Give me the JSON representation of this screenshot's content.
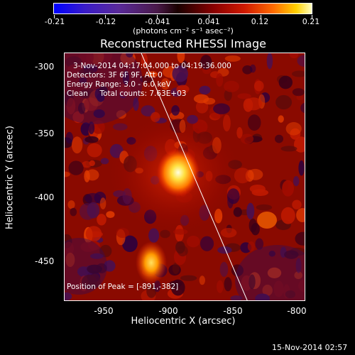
{
  "colorbar": {
    "ticks": [
      "-0.21",
      "-0.12",
      "-0.041",
      "0.041",
      "0.12",
      "0.21"
    ],
    "units": "(photons cm⁻² s⁻¹ asec⁻²)"
  },
  "title": "Reconstructed RHESSI Image",
  "annotations": {
    "time_range": "3-Nov-2014 04:17:04.000 to 04:19:36.000",
    "detectors": "Detectors: 3F 6F 9F, Att 0",
    "energy": "Energy Range: 3.0 - 6.0 keV",
    "clean": "Clean     Total counts: 7.63E+03",
    "peak": "Position of Peak = [-891,-382]"
  },
  "axes": {
    "xlabel": "Heliocentric X (arcsec)",
    "ylabel": "Heliocentric Y (arcsec)",
    "xticks": [
      "-950",
      "-900",
      "-850",
      "-800"
    ],
    "yticks": [
      "-300",
      "-350",
      "-400",
      "-450"
    ]
  },
  "timestamp": "15-Nov-2014 02:57",
  "colors": {
    "background": "#000000",
    "text": "#ffffff",
    "limb": "#ffffff"
  }
}
